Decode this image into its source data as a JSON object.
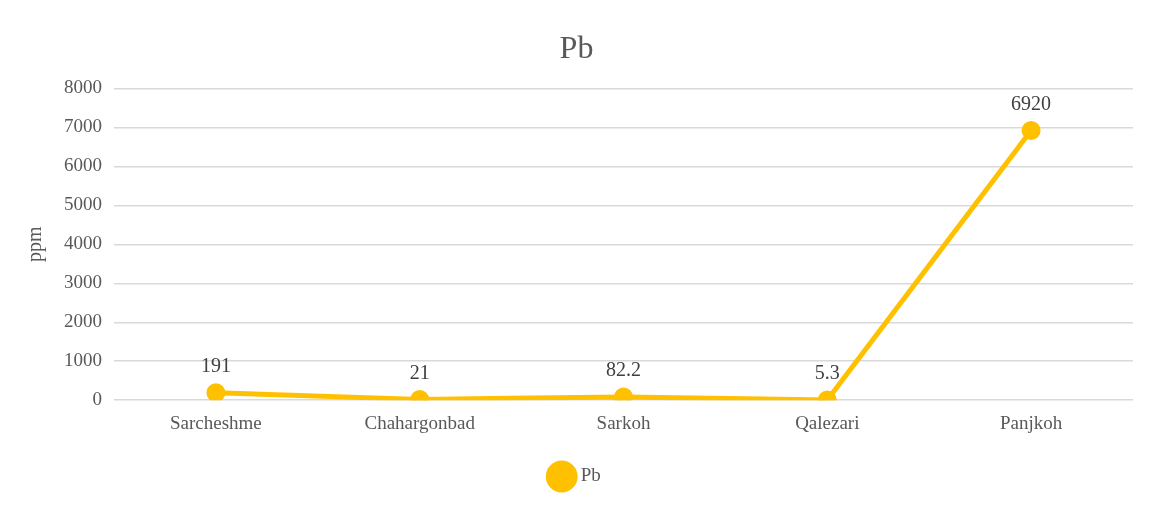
{
  "chart_data": {
    "type": "line",
    "title": "Pb",
    "ylabel": "ppm",
    "categories": [
      "Sarcheshme",
      "Chahargonbad",
      "Sarkoh",
      "Qalezari",
      "Panjkoh"
    ],
    "series": [
      {
        "name": "Pb",
        "color": "#ffc000",
        "values": [
          191,
          21,
          82.2,
          5.3,
          6920
        ]
      }
    ],
    "ylim": [
      0,
      8000
    ],
    "yticks": [
      0,
      1000,
      2000,
      3000,
      4000,
      5000,
      6000,
      7000,
      8000
    ],
    "grid": "y",
    "legend": "bottom",
    "marker": "circle",
    "line_style": "solid",
    "data_labels": true
  }
}
